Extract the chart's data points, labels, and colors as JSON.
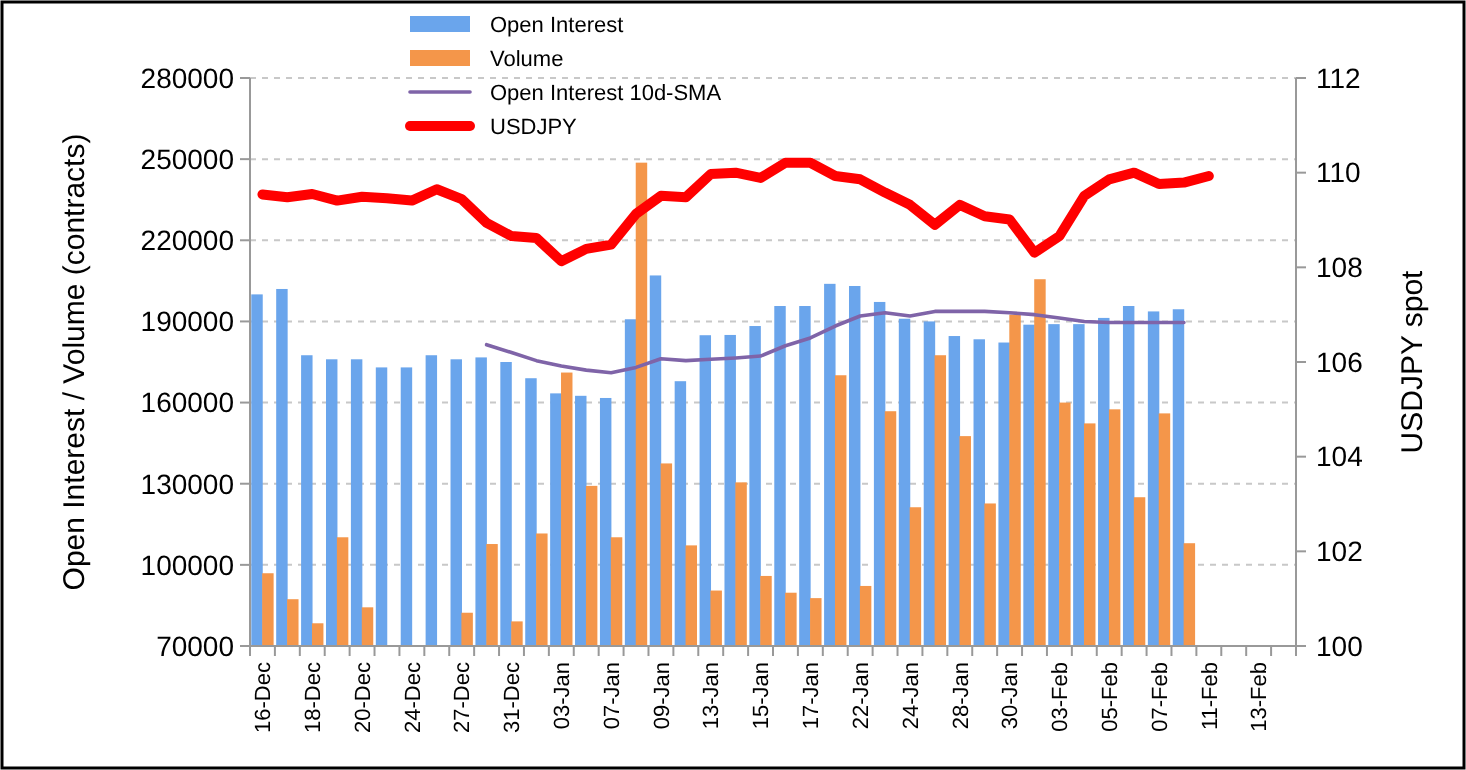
{
  "chart_data": {
    "type": "bar",
    "categories": [
      "16-Dec",
      null,
      "18-Dec",
      null,
      "20-Dec",
      null,
      "24-Dec",
      null,
      "27-Dec",
      null,
      "31-Dec",
      null,
      "03-Jan",
      null,
      "07-Jan",
      null,
      "09-Jan",
      null,
      "13-Jan",
      null,
      "15-Jan",
      null,
      "17-Jan",
      null,
      "22-Jan",
      null,
      "24-Jan",
      null,
      "28-Jan",
      null,
      "30-Jan",
      null,
      "03-Feb",
      null,
      "05-Feb",
      null,
      "07-Feb",
      null,
      "11-Feb",
      null,
      "13-Feb",
      null
    ],
    "series": [
      {
        "name": "Open Interest",
        "color": "#6aa5ec",
        "values": [
          200000,
          202000,
          177500,
          176000,
          176000,
          173000,
          173000,
          177500,
          176000,
          176700,
          175000,
          169000,
          163400,
          162500,
          161700,
          190800,
          207000,
          167900,
          184900,
          185000,
          188300,
          195700,
          195700,
          203900,
          203100,
          197200,
          191000,
          190000,
          184600,
          183400,
          182200,
          188800,
          189000,
          189000,
          191300,
          195700,
          193700,
          194500,
          null,
          null,
          null,
          null
        ]
      },
      {
        "name": "Volume",
        "color": "#f4964a",
        "values": [
          96900,
          87300,
          78400,
          110200,
          84300,
          null,
          null,
          null,
          82300,
          107700,
          79100,
          111600,
          171100,
          129200,
          110200,
          248700,
          137500,
          107200,
          90500,
          130500,
          95900,
          89700,
          87700,
          170100,
          92200,
          156800,
          121300,
          177500,
          147600,
          122700,
          192500,
          205600,
          160000,
          152300,
          157500,
          125000,
          156000,
          108000,
          null,
          null,
          null,
          null
        ]
      },
      {
        "name": "Open Interest 10d-SMA",
        "type": "line",
        "color": "#7f64a8",
        "values": [
          null,
          null,
          null,
          null,
          null,
          null,
          null,
          null,
          null,
          181400,
          178500,
          175500,
          173500,
          172000,
          171000,
          173000,
          176200,
          175500,
          176000,
          176500,
          177200,
          181000,
          183900,
          188300,
          192000,
          193200,
          192000,
          193700,
          193700,
          193700,
          193200,
          192500,
          191300,
          190000,
          189600,
          189600,
          189600,
          189600,
          null,
          null,
          null,
          null
        ]
      },
      {
        "name": "USDJPY",
        "type": "line",
        "axis": "y2",
        "color": "#ff0000",
        "values": [
          109.54,
          109.48,
          109.55,
          109.41,
          109.49,
          109.46,
          109.41,
          109.65,
          109.44,
          108.94,
          108.66,
          108.62,
          108.13,
          108.39,
          108.48,
          109.13,
          109.51,
          109.48,
          109.97,
          110.0,
          109.89,
          110.21,
          110.21,
          109.93,
          109.86,
          109.58,
          109.32,
          108.9,
          109.32,
          109.08,
          109.01,
          108.31,
          108.66,
          109.51,
          109.86,
          110.0,
          109.76,
          109.79,
          109.93,
          null,
          null,
          null
        ]
      }
    ],
    "ylabel": "Open Interest / Volume (contracts)",
    "y2label": "USDJPY spot",
    "ylim": [
      70000,
      280000
    ],
    "yticks": [
      70000,
      100000,
      130000,
      160000,
      190000,
      220000,
      250000,
      280000
    ],
    "y2lim": [
      100,
      112
    ],
    "y2ticks": [
      100,
      102,
      104,
      106,
      108,
      110,
      112
    ],
    "grid": "y",
    "legend": "top"
  }
}
